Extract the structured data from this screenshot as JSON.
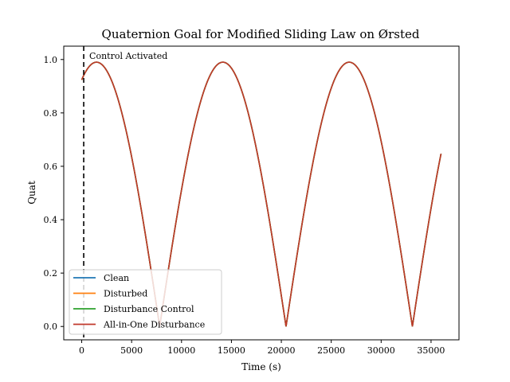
{
  "chart_data": {
    "type": "line",
    "title": "Quaternion Goal for Modified Sliding Law on Ørsted",
    "xlabel": "Time (s)",
    "ylabel": "Quat",
    "xlim": [
      -1800,
      37800
    ],
    "ylim": [
      -0.05,
      1.05
    ],
    "xticks": [
      0,
      5000,
      10000,
      15000,
      20000,
      25000,
      30000,
      35000
    ],
    "yticks": [
      0.0,
      0.2,
      0.4,
      0.6,
      0.8,
      1.0
    ],
    "xtick_labels": [
      "0",
      "5000",
      "10000",
      "15000",
      "20000",
      "25000",
      "30000",
      "35000"
    ],
    "ytick_labels": [
      "0.0",
      "0.2",
      "0.4",
      "0.6",
      "0.8",
      "1.0"
    ],
    "grid": false,
    "legend_position": "lower-left",
    "curve": {
      "description": "abs(cos(omega*(t - t_peak))) envelope sampled per series",
      "x_start": 0,
      "x_end": 36000,
      "peak_value": 0.99,
      "orbit_period_s": 12660,
      "first_peak_s": 1480
    },
    "series": [
      {
        "name": "Clean",
        "color": "#1f77b4"
      },
      {
        "name": "Disturbed",
        "color": "#ff7f0e"
      },
      {
        "name": "Disturbance Control",
        "color": "#2ca02c"
      },
      {
        "name": "All-in-One Disturbance",
        "color": "#c0392b"
      }
    ],
    "annotations": [
      {
        "type": "vline",
        "x": 200,
        "style": "dashed",
        "color": "#000000"
      },
      {
        "type": "text",
        "text": "Control Activated",
        "x": 200,
        "y": 1.0
      }
    ]
  }
}
